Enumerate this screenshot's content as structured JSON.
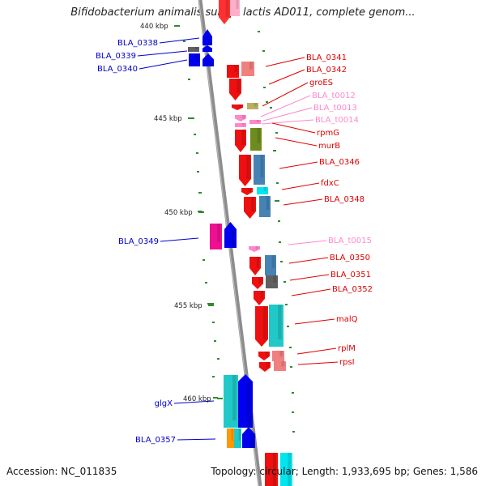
{
  "title": "Bifidobacterium animalis subsp. lactis AD011, complete genom...",
  "footer": {
    "accession": "Accession: NC_011835",
    "summary": "Topology: circular; Length: 1,933,695 bp; Genes: 1,586"
  },
  "colors": {
    "backbone": "#8c8c8c",
    "gc_tick": "#2e8b2e",
    "label_reverse": "#0000cc",
    "label_forward": "#e00000",
    "label_trna": "#ff88cc"
  },
  "scale_labels": [
    "440 kbp",
    "445 kbp",
    "450 kbp",
    "455 kbp",
    "460 kbp"
  ],
  "left_labels": [
    {
      "text": "BLA_0338",
      "color": "#0000cc"
    },
    {
      "text": "BLA_0339",
      "color": "#0000cc"
    },
    {
      "text": "BLA_0340",
      "color": "#0000cc"
    },
    {
      "text": "BLA_0349",
      "color": "#0000cc"
    },
    {
      "text": "glgX",
      "color": "#0000cc"
    },
    {
      "text": "BLA_0357",
      "color": "#0000cc"
    }
  ],
  "right_labels": [
    {
      "text": "BLA_0341",
      "color": "#e00000"
    },
    {
      "text": "BLA_0342",
      "color": "#e00000"
    },
    {
      "text": "groES",
      "color": "#e00000"
    },
    {
      "text": "BLA_t0012",
      "color": "#ff88cc"
    },
    {
      "text": "BLA_t0013",
      "color": "#ff88cc"
    },
    {
      "text": "BLA_t0014",
      "color": "#ff88cc"
    },
    {
      "text": "rpmG",
      "color": "#e00000"
    },
    {
      "text": "murB",
      "color": "#e00000"
    },
    {
      "text": "BLA_0346",
      "color": "#e00000"
    },
    {
      "text": "fdxC",
      "color": "#e00000"
    },
    {
      "text": "BLA_0348",
      "color": "#e00000"
    },
    {
      "text": "BLA_t0015",
      "color": "#ff88cc"
    },
    {
      "text": "BLA_0350",
      "color": "#e00000"
    },
    {
      "text": "BLA_0351",
      "color": "#e00000"
    },
    {
      "text": "BLA_0352",
      "color": "#e00000"
    },
    {
      "text": "malQ",
      "color": "#e00000"
    },
    {
      "text": "rplM",
      "color": "#e00000"
    },
    {
      "text": "rpsI",
      "color": "#e00000"
    }
  ]
}
